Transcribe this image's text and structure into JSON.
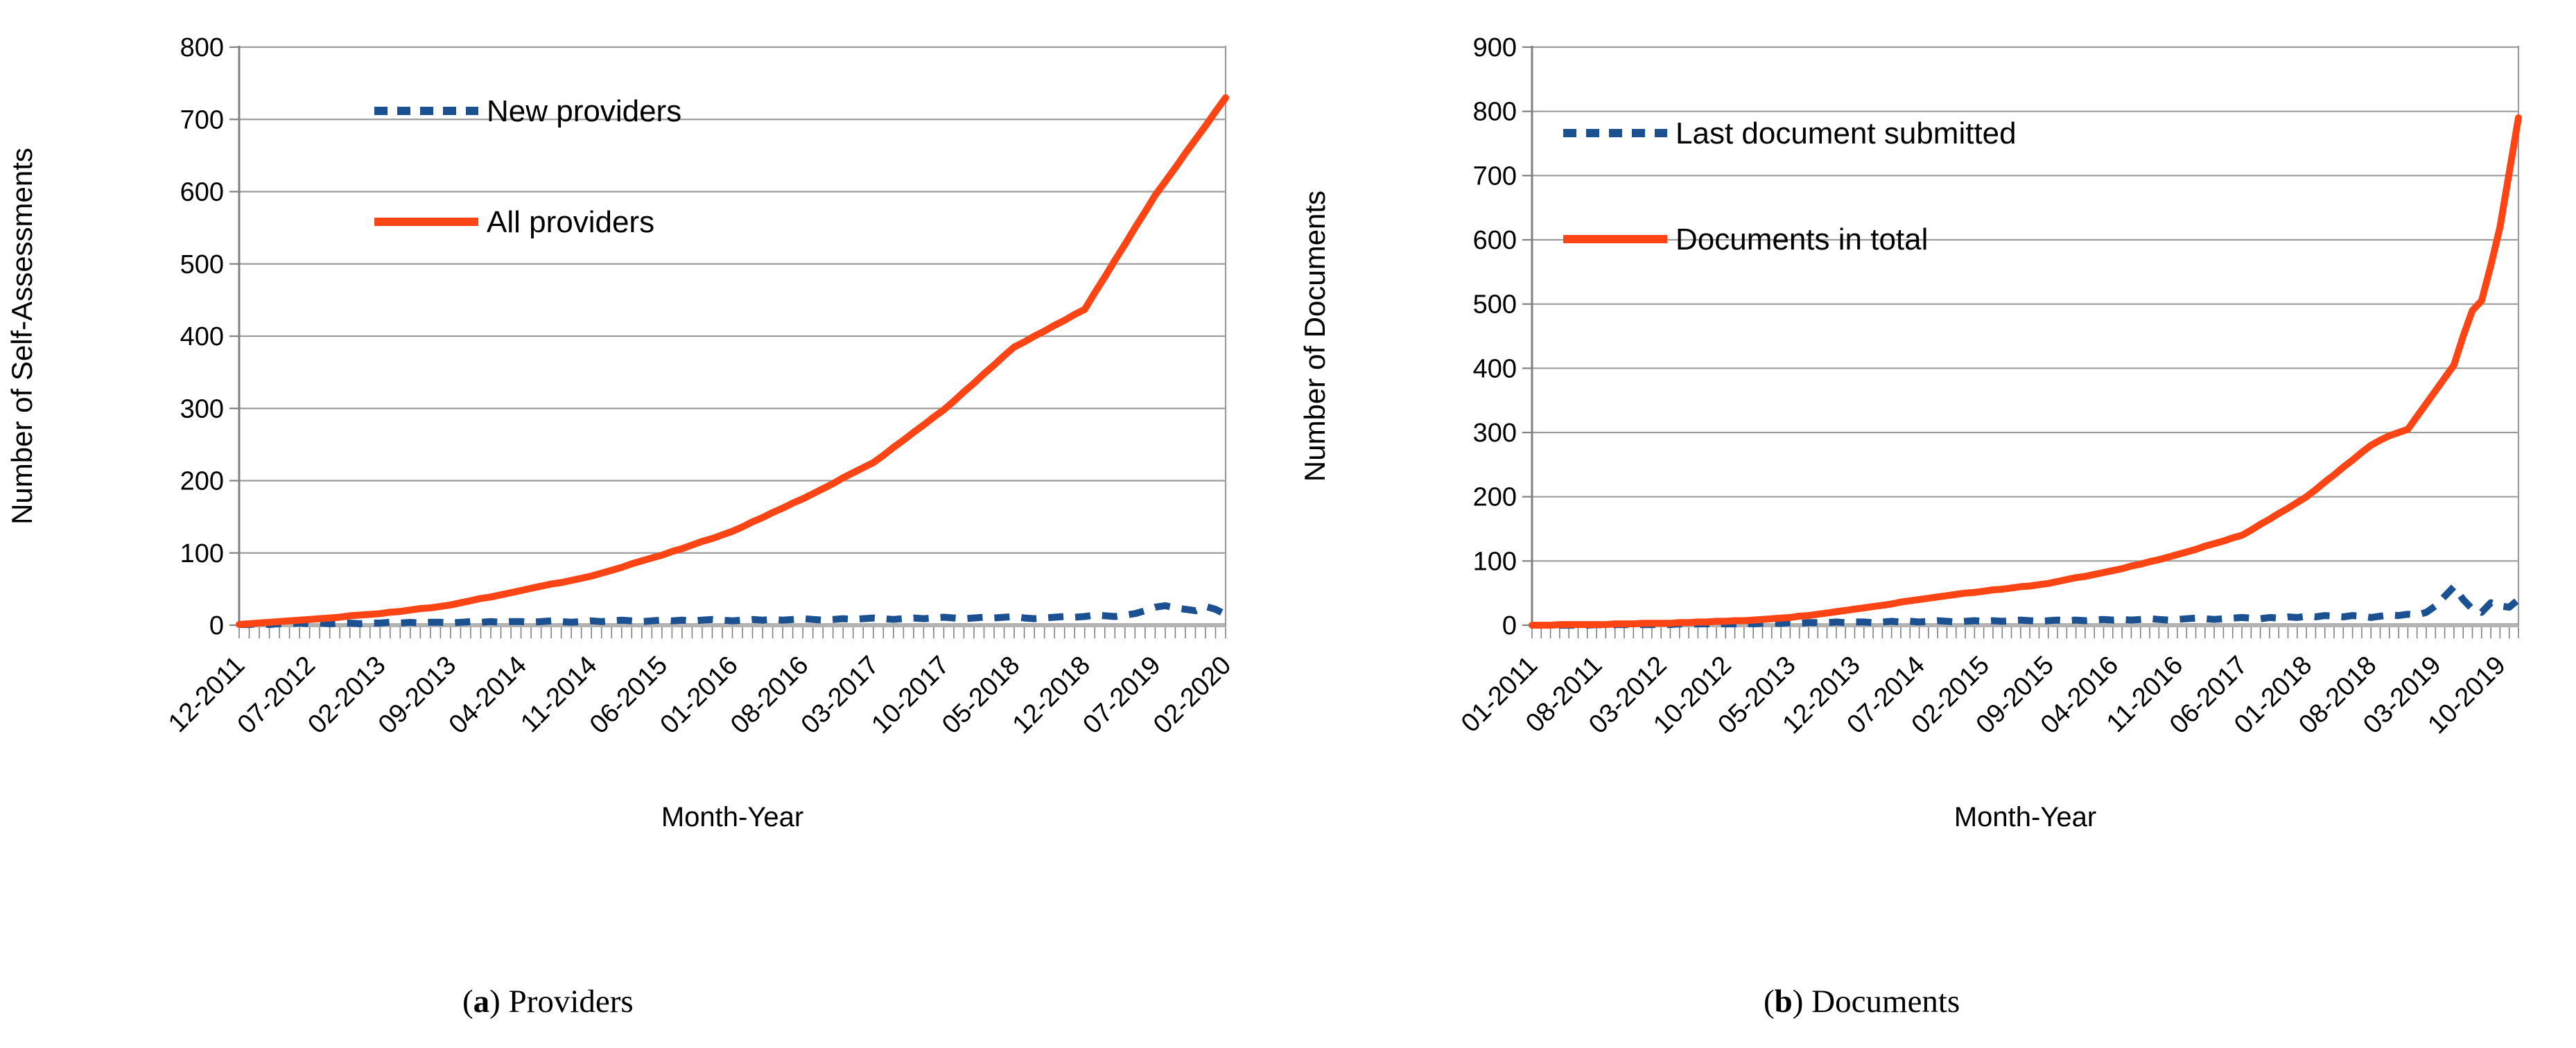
{
  "figure": {
    "panels": [
      {
        "caption": {
          "open": "(",
          "marker": "a",
          "close": ") ",
          "label": "Providers"
        }
      },
      {
        "caption": {
          "open": "(",
          "marker": "b",
          "close": ") ",
          "label": "Documents"
        }
      }
    ]
  },
  "colors": {
    "dashed_series": "#1B5191",
    "solid_series": "#FC4415",
    "gridline": "#9C9C9C",
    "axis": "#808080",
    "baseline": "#B3B3B3"
  },
  "chart_data": [
    {
      "type": "line",
      "title": "",
      "xlabel": "Month-Year",
      "ylabel": "Number of Self-Assessments",
      "ylim": [
        0,
        800
      ],
      "ytick_step": 100,
      "yticks": [
        0,
        100,
        200,
        300,
        400,
        500,
        600,
        700,
        800
      ],
      "grid": true,
      "legend_position": "inside-top-left",
      "x_tick_every": 7,
      "x_tick_labels": [
        "12-2011",
        "07-2012",
        "02-2013",
        "09-2013",
        "04-2014",
        "11-2014",
        "06-2015",
        "01-2016",
        "08-2016",
        "03-2017",
        "10-2017",
        "05-2018",
        "12-2018",
        "07-2019",
        "02-2020"
      ],
      "series": [
        {
          "name": "New providers",
          "style": "dashed",
          "color": "#1B5191",
          "values": [
            1,
            1,
            2,
            1,
            2,
            2,
            3,
            2,
            3,
            2,
            3,
            3,
            2,
            3,
            3,
            4,
            3,
            4,
            3,
            4,
            4,
            3,
            4,
            5,
            4,
            5,
            4,
            5,
            5,
            4,
            5,
            6,
            5,
            4,
            5,
            6,
            5,
            6,
            7,
            6,
            5,
            6,
            7,
            6,
            7,
            6,
            7,
            8,
            7,
            6,
            7,
            8,
            7,
            8,
            7,
            8,
            9,
            8,
            7,
            8,
            9,
            8,
            9,
            10,
            9,
            8,
            9,
            10,
            9,
            10,
            11,
            10,
            9,
            10,
            11,
            10,
            11,
            12,
            10,
            9,
            10,
            11,
            12,
            11,
            12,
            14,
            13,
            12,
            14,
            16,
            20,
            25,
            27,
            24,
            22,
            20,
            26,
            22,
            15
          ]
        },
        {
          "name": "All providers",
          "style": "solid",
          "color": "#FC4415",
          "values": [
            1,
            2,
            3,
            4,
            5,
            6,
            7,
            8,
            9,
            10,
            11,
            13,
            14,
            15,
            16,
            18,
            19,
            21,
            23,
            24,
            26,
            28,
            31,
            34,
            37,
            39,
            42,
            45,
            48,
            51,
            54,
            57,
            59,
            62,
            65,
            68,
            72,
            76,
            80,
            85,
            89,
            93,
            97,
            102,
            106,
            111,
            116,
            120,
            125,
            130,
            136,
            143,
            149,
            156,
            162,
            169,
            175,
            182,
            189,
            196,
            204,
            211,
            218,
            225,
            235,
            246,
            256,
            267,
            277,
            288,
            298,
            310,
            323,
            335,
            348,
            360,
            373,
            385,
            392,
            400,
            407,
            415,
            422,
            430,
            437,
            460,
            482,
            505,
            527,
            550,
            572,
            595,
            614,
            633,
            653,
            672,
            691,
            711,
            730
          ]
        }
      ]
    },
    {
      "type": "line",
      "title": "",
      "xlabel": "Month-Year",
      "ylabel": "Number of Documents",
      "ylim": [
        0,
        900
      ],
      "ytick_step": 100,
      "yticks": [
        0,
        100,
        200,
        300,
        400,
        500,
        600,
        700,
        800,
        900
      ],
      "grid": true,
      "legend_position": "inside-top-left",
      "x_tick_every": 7,
      "x_tick_labels": [
        "01-2011",
        "08-2011",
        "03-2012",
        "10-2012",
        "05-2013",
        "12-2013",
        "07-2014",
        "02-2015",
        "09-2015",
        "04-2016",
        "11-2016",
        "06-2017",
        "01-2018",
        "08-2018",
        "03-2019",
        "10-2019"
      ],
      "series": [
        {
          "name": "Last document submitted",
          "style": "dashed",
          "color": "#1B5191",
          "values": [
            0,
            0,
            0,
            0,
            0,
            0,
            0,
            1,
            0,
            1,
            1,
            1,
            1,
            1,
            1,
            1,
            2,
            1,
            2,
            2,
            2,
            2,
            2,
            3,
            2,
            3,
            3,
            3,
            4,
            3,
            4,
            4,
            4,
            5,
            4,
            5,
            5,
            4,
            5,
            6,
            5,
            6,
            5,
            6,
            7,
            6,
            5,
            6,
            7,
            6,
            7,
            6,
            7,
            8,
            7,
            6,
            7,
            8,
            7,
            8,
            7,
            8,
            9,
            8,
            9,
            8,
            9,
            10,
            9,
            8,
            9,
            10,
            11,
            10,
            9,
            10,
            11,
            12,
            11,
            10,
            12,
            11,
            13,
            12,
            14,
            13,
            15,
            14,
            13,
            15,
            14,
            12,
            14,
            16,
            15,
            17,
            16,
            20,
            30,
            45,
            60,
            40,
            25,
            20,
            35,
            30,
            28,
            40
          ]
        },
        {
          "name": "Documents in total",
          "style": "solid",
          "color": "#FC4415",
          "values": [
            0,
            0,
            0,
            1,
            1,
            1,
            1,
            1,
            1,
            2,
            2,
            2,
            3,
            3,
            3,
            3,
            4,
            4,
            5,
            5,
            6,
            6,
            7,
            7,
            8,
            9,
            10,
            11,
            12,
            14,
            15,
            17,
            19,
            21,
            23,
            25,
            27,
            29,
            31,
            33,
            36,
            38,
            40,
            42,
            44,
            46,
            48,
            50,
            51,
            53,
            55,
            56,
            58,
            60,
            61,
            63,
            65,
            68,
            71,
            74,
            76,
            79,
            82,
            85,
            88,
            92,
            95,
            99,
            102,
            106,
            110,
            114,
            118,
            123,
            127,
            131,
            136,
            140,
            148,
            157,
            165,
            174,
            182,
            191,
            200,
            211,
            223,
            234,
            246,
            257,
            269,
            280,
            288,
            295,
            300,
            305,
            325,
            345,
            365,
            385,
            405,
            450,
            490,
            505,
            560,
            620,
            705,
            790
          ]
        }
      ]
    }
  ]
}
